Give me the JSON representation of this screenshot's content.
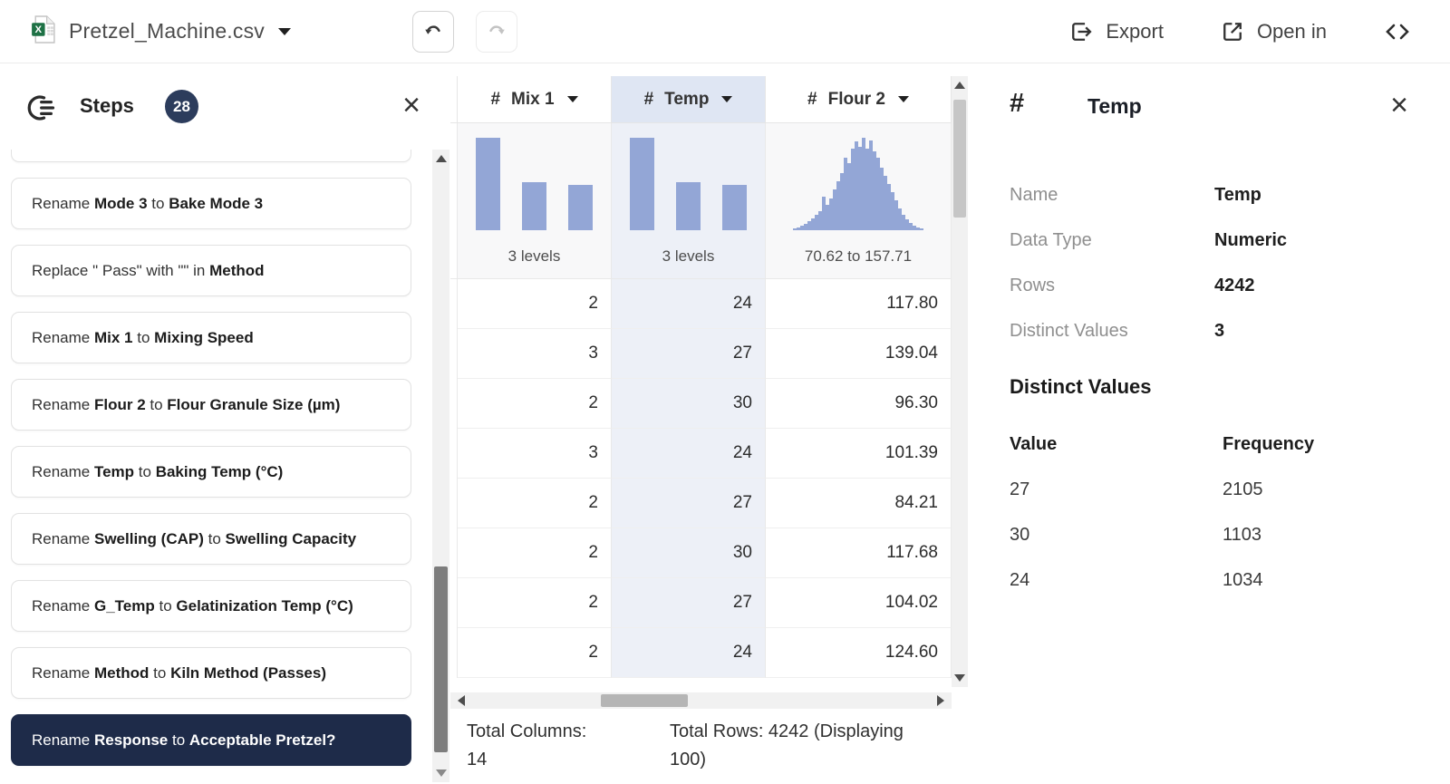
{
  "topbar": {
    "file_name": "Pretzel_Machine.csv",
    "export_label": "Export",
    "open_in_label": "Open in"
  },
  "icons": {
    "close": "×",
    "file_type_letter": "X"
  },
  "steps_panel": {
    "title": "Steps",
    "badge_count": "28",
    "steps": [
      {
        "selected": false,
        "segments": [
          {
            "text": "Rename ",
            "bold": false
          },
          {
            "text": "Mode 3",
            "bold": true
          },
          {
            "text": " to ",
            "bold": false
          },
          {
            "text": "Bake Mode 3",
            "bold": true
          }
        ]
      },
      {
        "selected": false,
        "segments": [
          {
            "text": "Replace \" Pass\" with \"\" in ",
            "bold": false
          },
          {
            "text": "Method",
            "bold": true
          }
        ]
      },
      {
        "selected": false,
        "segments": [
          {
            "text": "Rename ",
            "bold": false
          },
          {
            "text": "Mix 1",
            "bold": true
          },
          {
            "text": " to ",
            "bold": false
          },
          {
            "text": "Mixing Speed",
            "bold": true
          }
        ]
      },
      {
        "selected": false,
        "segments": [
          {
            "text": "Rename ",
            "bold": false
          },
          {
            "text": "Flour 2",
            "bold": true
          },
          {
            "text": " to ",
            "bold": false
          },
          {
            "text": "Flour Granule Size (µm)",
            "bold": true
          }
        ]
      },
      {
        "selected": false,
        "segments": [
          {
            "text": "Rename ",
            "bold": false
          },
          {
            "text": "Temp",
            "bold": true
          },
          {
            "text": " to ",
            "bold": false
          },
          {
            "text": "Baking Temp (°C)",
            "bold": true
          }
        ]
      },
      {
        "selected": false,
        "segments": [
          {
            "text": "Rename ",
            "bold": false
          },
          {
            "text": "Swelling (CAP)",
            "bold": true
          },
          {
            "text": " to ",
            "bold": false
          },
          {
            "text": "Swelling Capacity",
            "bold": true
          }
        ]
      },
      {
        "selected": false,
        "segments": [
          {
            "text": "Rename ",
            "bold": false
          },
          {
            "text": "G_Temp",
            "bold": true
          },
          {
            "text": " to ",
            "bold": false
          },
          {
            "text": "Gelatinization Temp (°C)",
            "bold": true
          }
        ]
      },
      {
        "selected": false,
        "segments": [
          {
            "text": "Rename ",
            "bold": false
          },
          {
            "text": "Method",
            "bold": true
          },
          {
            "text": " to ",
            "bold": false
          },
          {
            "text": "Kiln Method (Passes)",
            "bold": true
          }
        ]
      },
      {
        "selected": true,
        "segments": [
          {
            "text": "Rename ",
            "bold": false
          },
          {
            "text": "Response",
            "bold": true
          },
          {
            "text": " to ",
            "bold": false
          },
          {
            "text": "Acceptable Pretzel?",
            "bold": true
          }
        ]
      }
    ]
  },
  "grid": {
    "columns": [
      {
        "type_symbol": "#",
        "name": "Mix 1",
        "summary": "3 levels",
        "selected": false,
        "histogram": {
          "type": "bars",
          "values": [
            1,
            0.52,
            0.49
          ]
        }
      },
      {
        "type_symbol": "#",
        "name": "Temp",
        "summary": "3 levels",
        "selected": true,
        "histogram": {
          "type": "bars",
          "values": [
            1,
            0.524,
            0.491
          ]
        }
      },
      {
        "type_symbol": "#",
        "name": "Flour 2",
        "summary": "70.62 to 157.71",
        "selected": false,
        "histogram": {
          "type": "distribution",
          "values": [
            0.02,
            0.03,
            0.05,
            0.07,
            0.1,
            0.13,
            0.17,
            0.21,
            0.36,
            0.27,
            0.34,
            0.44,
            0.53,
            0.62,
            0.78,
            0.73,
            0.88,
            0.96,
            0.9,
            1.0,
            0.88,
            0.97,
            0.85,
            0.78,
            0.68,
            0.59,
            0.5,
            0.41,
            0.32,
            0.24,
            0.17,
            0.12,
            0.08,
            0.05,
            0.03,
            0.02
          ]
        }
      }
    ],
    "rows": [
      [
        "2",
        "24",
        "117.80"
      ],
      [
        "3",
        "27",
        "139.04"
      ],
      [
        "2",
        "30",
        "96.30"
      ],
      [
        "3",
        "24",
        "101.39"
      ],
      [
        "2",
        "27",
        "84.21"
      ],
      [
        "2",
        "30",
        "117.68"
      ],
      [
        "2",
        "27",
        "104.02"
      ],
      [
        "2",
        "24",
        "124.60"
      ]
    ],
    "status": {
      "total_columns": "Total Columns: 14",
      "total_rows": "Total Rows: 4242 (Displaying 100)"
    }
  },
  "detail_panel": {
    "type_symbol": "#",
    "title": "Temp",
    "fields": [
      {
        "label": "Name",
        "value": "Temp"
      },
      {
        "label": "Data Type",
        "value": "Numeric"
      },
      {
        "label": "Rows",
        "value": "4242"
      },
      {
        "label": "Distinct Values",
        "value": "3"
      }
    ],
    "section_heading": "Distinct Values",
    "distinct_table": {
      "headers": [
        "Value",
        "Frequency"
      ],
      "rows": [
        [
          "27",
          "2105"
        ],
        [
          "30",
          "1103"
        ],
        [
          "24",
          "1034"
        ]
      ]
    }
  },
  "colors": {
    "accent_navy": "#1e2b49",
    "badge_navy": "#2c3c5c",
    "selected_column_header": "#dfe6f3",
    "selected_column_cell": "#edf0f7",
    "histogram_bar": "#93a6d6"
  }
}
